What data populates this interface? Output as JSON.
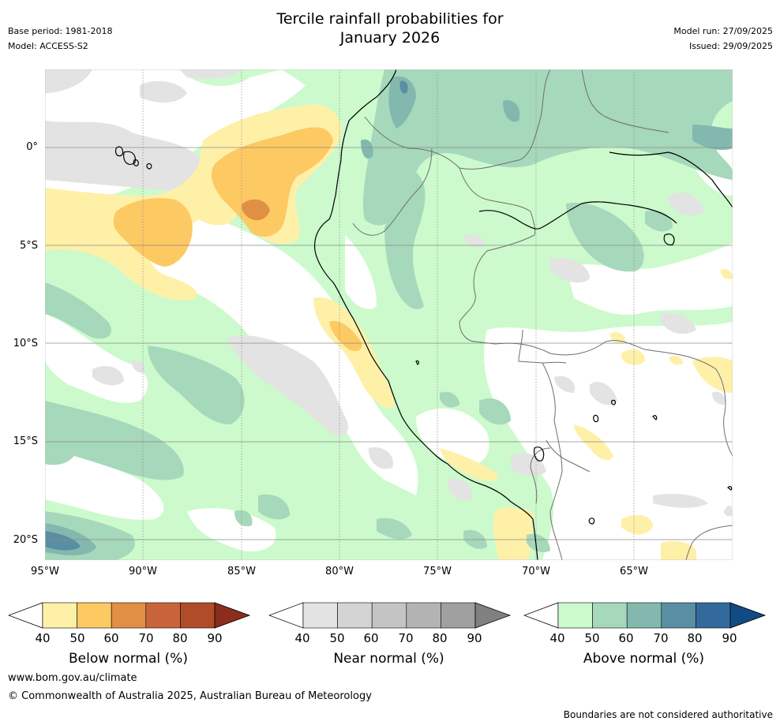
{
  "header": {
    "title_line1": "Tercile rainfall probabilities for",
    "title_line2": "January 2026",
    "base_period": "Base period: 1981-2018",
    "model": "Model: ACCESS-S2",
    "model_run": "Model run: 27/09/2025",
    "issued": "Issued: 29/09/2025"
  },
  "map": {
    "lat_labels": [
      "0°",
      "5°S",
      "10°S",
      "15°S",
      "20°S"
    ],
    "lon_labels": [
      "95°W",
      "90°W",
      "85°W",
      "80°W",
      "75°W",
      "70°W",
      "65°W"
    ],
    "colors": {
      "below": [
        "#fff0a8",
        "#fdc962",
        "#e09044",
        "#c9643a",
        "#b04c28",
        "#8c2c1c"
      ],
      "near": [
        "#e3e3e3",
        "#d4d4d4",
        "#c4c4c4",
        "#b3b3b3",
        "#a0a0a0",
        "#808080"
      ],
      "above": [
        "#ccfacc",
        "#a6d8bb",
        "#83b8ae",
        "#5a8ea4",
        "#336a9c",
        "#124a84"
      ]
    }
  },
  "colorbars": [
    {
      "title": "Below normal (%)",
      "ticks": [
        "40",
        "50",
        "60",
        "70",
        "80",
        "90"
      ]
    },
    {
      "title": "Near normal (%)",
      "ticks": [
        "40",
        "50",
        "60",
        "70",
        "80",
        "90"
      ]
    },
    {
      "title": "Above normal (%)",
      "ticks": [
        "40",
        "50",
        "60",
        "70",
        "80",
        "90"
      ]
    }
  ],
  "footer": {
    "website": "www.bom.gov.au/climate",
    "copyright": "© Commonwealth of Australia 2025, Australian Bureau of Meteorology",
    "disclaimer": "Boundaries are not considered authoritative"
  }
}
